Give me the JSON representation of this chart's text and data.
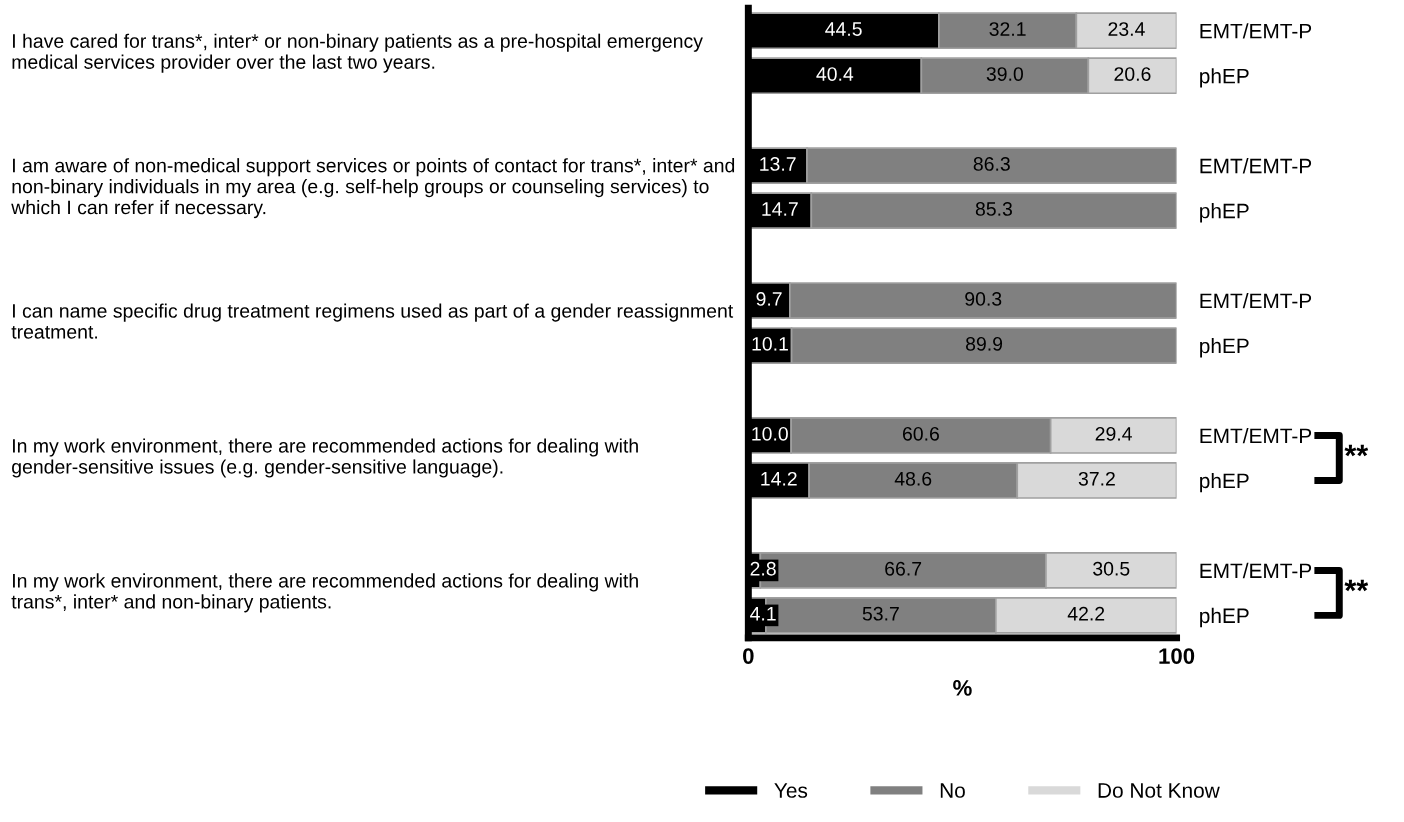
{
  "chart_data": {
    "type": "bar",
    "orientation": "horizontal",
    "stacked": true,
    "categories": [
      "EMT/EMT-P",
      "phEP",
      null,
      "EMT/EMT-P",
      "phEP",
      null,
      "EMT/EMT-P",
      "phEP",
      null,
      "EMT/EMT-P",
      "phEP",
      null,
      "EMT/EMT-P",
      "phEP"
    ],
    "series": [
      {
        "name": "Yes",
        "color": "#000000",
        "values": [
          44.5,
          40.4,
          null,
          13.7,
          14.7,
          null,
          9.7,
          10.1,
          null,
          10.0,
          14.2,
          null,
          2.8,
          4.1
        ],
        "value_labels": [
          "44.5",
          "40.4",
          null,
          "13.7",
          "14.7",
          null,
          "9.7",
          "10.1",
          null,
          "10.0",
          "14.2",
          null,
          "2.8",
          "4.1"
        ]
      },
      {
        "name": "No",
        "color": "#808080",
        "values": [
          32.1,
          39.0,
          null,
          86.3,
          85.3,
          null,
          90.3,
          89.9,
          null,
          60.6,
          48.6,
          null,
          66.7,
          53.7
        ],
        "value_labels": [
          "32.1",
          "39.0",
          null,
          "86.3",
          "85.3",
          null,
          "90.3",
          "89.9",
          null,
          "60.6",
          "48.6",
          null,
          "66.7",
          "53.7"
        ]
      },
      {
        "name": "Do Not Know",
        "color": "#d9d9d9",
        "values": [
          23.4,
          20.6,
          null,
          null,
          null,
          null,
          null,
          null,
          null,
          29.4,
          37.2,
          null,
          30.5,
          42.2
        ],
        "value_labels": [
          "23.4",
          "20.6",
          null,
          null,
          null,
          null,
          null,
          null,
          null,
          "29.4",
          "37.2",
          null,
          "30.5",
          "42.2"
        ]
      }
    ],
    "xlim": [
      0,
      100
    ],
    "xticks": [
      0,
      100
    ],
    "xlabel": "%",
    "legend": "bottom",
    "grid": false,
    "annotations": [
      "I have cared for trans*, inter* or non-binary patients as a pre-hospital emergency\nmedical services provider over the last two years.",
      "I am aware of non-medical support services or points of contact for trans*, inter* and\nnon-binary individuals in my area (e.g. self-help groups or counseling services) to\nwhich I can refer if necessary.",
      "I can name specific drug treatment regimens used as part of a gender reassignment\ntreatment.",
      "In my work environment, there are recommended actions for dealing with\ngender-sensitive issues (e.g. gender-sensitive language).",
      "In my work environment, there are recommended actions for dealing with\ntrans*, inter* and non-binary patients.",
      "**",
      "**"
    ]
  }
}
